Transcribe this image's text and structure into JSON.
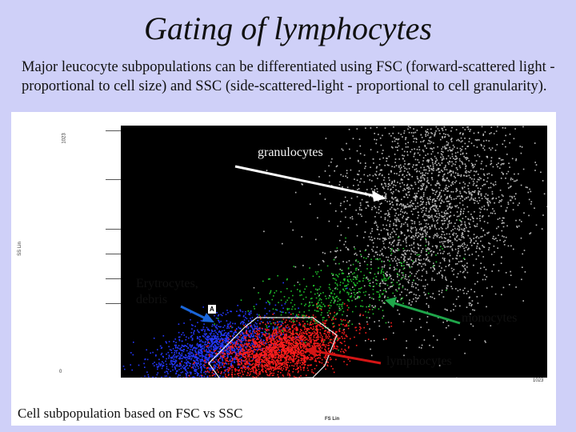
{
  "slide": {
    "title": "Gating of lymphocytes",
    "intro": "Major leucocyte subpopulations can be differentiated using FSC (forward-scattered light - proportional to cell size) and SSC (side-scattered-light - proportional to cell granularity).",
    "caption": "Cell subpopulation based on FSC vs SSC"
  },
  "figure": {
    "labels": {
      "granulocytes": "granulocytes",
      "erytrocytes": "Erytrocytes,\ndebris",
      "monocytes": "monocytes",
      "lymphocytes": "lymphocytes"
    },
    "gate_label": "A",
    "axis": {
      "y_label": "SS Lin",
      "x_label": "FS Lin",
      "y_max": "1023",
      "x_max": "1023",
      "origin": "0"
    },
    "colors": {
      "granulocytes": "#bdbdbd",
      "monocytes": "#1fbf2a",
      "lymphocytes": "#ff1d1d",
      "debris": "#2438ff",
      "arrow_granulocytes": "#ffffff",
      "arrow_monocytes": "#1fa64a",
      "arrow_lymphocytes": "#d41515",
      "arrow_erytrocytes": "#1a66d9",
      "gate": "#e8e8e8"
    }
  }
}
